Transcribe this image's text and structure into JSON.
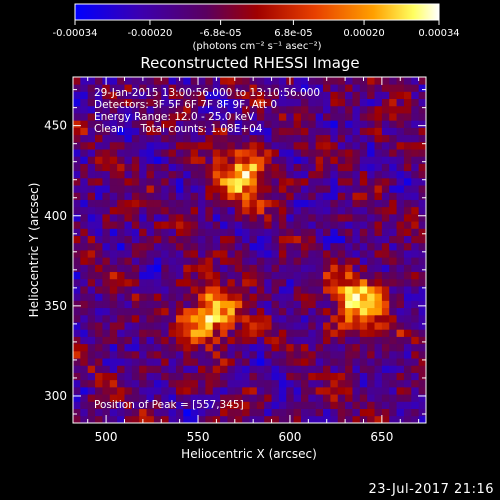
{
  "chart_data": {
    "type": "heatmap",
    "title": "Reconstructed RHESSI Image",
    "xlabel": "Heliocentric X (arcsec)",
    "ylabel": "Heliocentric Y (arcsec)",
    "xlim": [
      482,
      674
    ],
    "ylim": [
      285,
      477
    ],
    "x_ticks": [
      500,
      550,
      600,
      650
    ],
    "y_ticks": [
      300,
      350,
      400,
      450
    ],
    "colorbar": {
      "min": -0.00034,
      "max": 0.00034,
      "tick_labels": [
        "-0.00034",
        "-0.00020",
        "-6.8e-05",
        "6.8e-05",
        "0.00020",
        "0.00034"
      ],
      "units_label": "(photons cm⁻² s⁻¹ asec⁻²)",
      "colormap": [
        "#0000ff",
        "#3c00b0",
        "#5a0060",
        "#a00000",
        "#e84000",
        "#ffa000",
        "#ffff60",
        "#ffffff"
      ]
    },
    "annotations": {
      "time_range": "29-Jan-2015 13:00:56.000 to 13:10:56.000",
      "detectors": "Detectors: 3F 5F 6F 7F 8F 9F, Att 0",
      "energy": "Energy Range: 12.0 - 25.0 keV",
      "method": "Clean     Total counts: 1.08E+04",
      "peak": "Position of Peak = [557,345]"
    },
    "sources": [
      {
        "x": 557,
        "y": 345,
        "peak": 0.00034
      },
      {
        "x": 575,
        "y": 422,
        "peak": 0.00028
      },
      {
        "x": 637,
        "y": 352,
        "peak": 0.0003
      }
    ]
  },
  "footer": {
    "date": "23-Jul-2017 21:16"
  }
}
